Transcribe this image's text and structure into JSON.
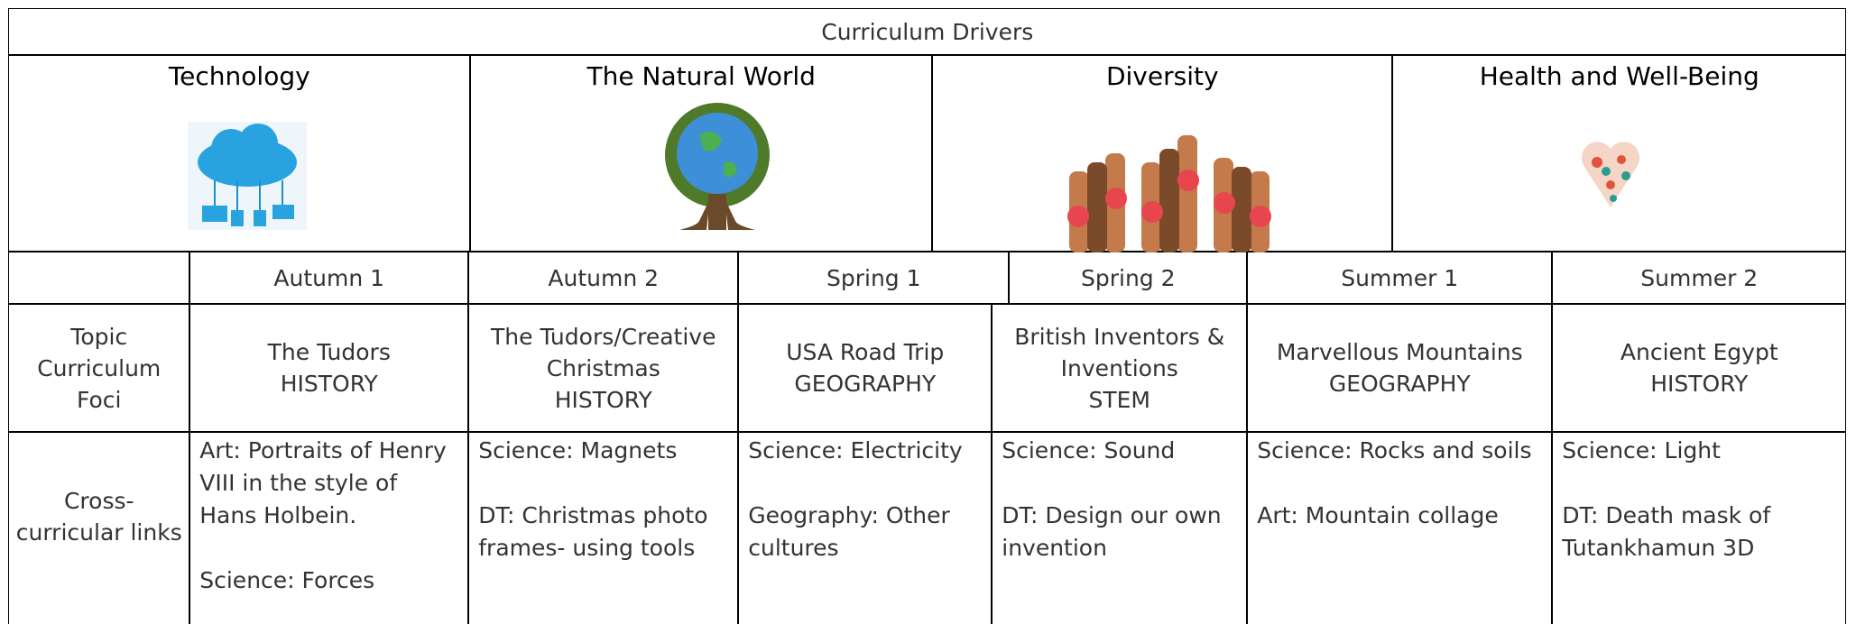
{
  "title": "Curriculum Drivers",
  "drivers": [
    "Technology",
    "The Natural  World",
    "Diversity",
    "Health and Well-Being"
  ],
  "terms": [
    "Autumn 1",
    "Autumn 2",
    "Spring 1",
    "Spring 2",
    "Summer 1",
    "Summer 2"
  ],
  "topic": {
    "label": "Topic Curriculum Foci",
    "cells": [
      [
        "The Tudors",
        "HISTORY"
      ],
      [
        "The Tudors/Creative Christmas",
        "HISTORY"
      ],
      [
        "USA Road Trip",
        "GEOGRAPHY"
      ],
      [
        "British Inventors & Inventions",
        "STEM"
      ],
      [
        "Marvellous Mountains",
        "GEOGRAPHY"
      ],
      [
        "Ancient Egypt",
        "HISTORY"
      ]
    ]
  },
  "links": {
    "label": "Cross-curricular links",
    "cells": [
      [
        "Art: Portraits of Henry VIII in the style of Hans Holbein.",
        "Science: Forces"
      ],
      [
        "Science: Magnets",
        "DT: Christmas photo frames- using tools"
      ],
      [
        "Science: Electricity",
        "Geography: Other cultures"
      ],
      [
        "Science: Sound",
        "DT: Design our own invention"
      ],
      [
        "Science: Rocks and soils",
        "Art: Mountain collage"
      ],
      [
        "Science: Light",
        "DT: Death mask of Tutankhamun 3D"
      ]
    ]
  }
}
